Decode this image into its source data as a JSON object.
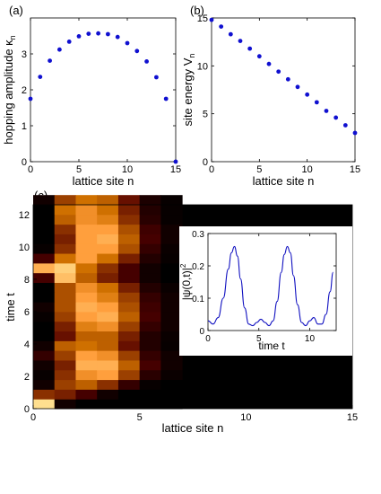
{
  "chart_data": [
    {
      "type": "scatter",
      "panel_label": "(a)",
      "xlabel": "lattice site n",
      "ylabel": "hopping amplitude κ",
      "ylabel_sub": "n",
      "xlim": [
        0,
        15
      ],
      "ylim": [
        0,
        4
      ],
      "xticks": [
        0,
        5,
        10,
        15
      ],
      "yticks": [
        0,
        1,
        2,
        3
      ],
      "grid": false,
      "color": "#1010d0",
      "x": [
        0,
        1,
        2,
        3,
        4,
        5,
        6,
        7,
        8,
        9,
        10,
        11,
        12,
        13,
        14,
        15
      ],
      "y": [
        1.75,
        2.36,
        2.81,
        3.12,
        3.34,
        3.49,
        3.56,
        3.57,
        3.55,
        3.47,
        3.3,
        3.08,
        2.79,
        2.35,
        1.75,
        0.0
      ]
    },
    {
      "type": "scatter",
      "panel_label": "(b)",
      "xlabel": "lattice site n",
      "ylabel": "site energy  V",
      "ylabel_sub": "n",
      "xlim": [
        0,
        15
      ],
      "ylim": [
        0,
        15
      ],
      "xticks": [
        0,
        5,
        10,
        15
      ],
      "yticks": [
        0,
        5,
        10,
        15
      ],
      "grid": false,
      "color": "#1010d0",
      "x": [
        0,
        1,
        2,
        3,
        4,
        5,
        6,
        7,
        8,
        9,
        10,
        11,
        12,
        13,
        14,
        15
      ],
      "y": [
        14.8,
        14.1,
        13.3,
        12.6,
        11.8,
        11.0,
        10.2,
        9.4,
        8.6,
        7.8,
        7.0,
        6.2,
        5.3,
        4.6,
        3.8,
        3.0
      ]
    },
    {
      "type": "heatmap",
      "panel_label": "(c)",
      "xlabel": "lattice site n",
      "ylabel": "time  t",
      "xlim": [
        0,
        15
      ],
      "ylim": [
        0,
        12.6
      ],
      "xticks": [
        0,
        5,
        10,
        15
      ],
      "yticks": [
        0,
        2,
        4,
        6,
        8,
        10,
        12
      ],
      "colormap": "copper",
      "grid": false,
      "times": [
        0.0,
        0.6,
        1.2,
        1.8,
        2.4,
        3.0,
        3.6,
        4.2,
        4.8,
        5.4,
        6.0,
        6.6,
        7.2,
        7.8,
        8.4,
        9.0,
        9.6,
        10.2,
        10.8,
        11.4,
        12.0,
        12.6
      ],
      "sites": [
        0,
        1,
        2,
        3,
        4,
        5,
        6
      ],
      "values": [
        [
          0.95,
          0.05,
          0.0,
          0.0,
          0.0,
          0.0,
          0.0
        ],
        [
          0.4,
          0.35,
          0.2,
          0.05,
          0.0,
          0.0,
          0.0
        ],
        [
          0.05,
          0.45,
          0.55,
          0.4,
          0.15,
          0.02,
          0.0
        ],
        [
          0.02,
          0.4,
          0.7,
          0.75,
          0.45,
          0.12,
          0.03
        ],
        [
          0.05,
          0.35,
          0.8,
          0.8,
          0.55,
          0.2,
          0.05
        ],
        [
          0.15,
          0.45,
          0.75,
          0.7,
          0.45,
          0.15,
          0.05
        ],
        [
          0.05,
          0.55,
          0.6,
          0.55,
          0.3,
          0.1,
          0.02
        ],
        [
          0.0,
          0.3,
          0.55,
          0.55,
          0.35,
          0.1,
          0.03
        ],
        [
          0.0,
          0.35,
          0.65,
          0.7,
          0.45,
          0.15,
          0.05
        ],
        [
          0.02,
          0.45,
          0.75,
          0.8,
          0.55,
          0.2,
          0.05
        ],
        [
          0.05,
          0.5,
          0.8,
          0.75,
          0.5,
          0.18,
          0.05
        ],
        [
          0.0,
          0.5,
          0.75,
          0.65,
          0.45,
          0.15,
          0.05
        ],
        [
          0.0,
          0.5,
          0.7,
          0.6,
          0.35,
          0.1,
          0.03
        ],
        [
          0.2,
          0.85,
          0.55,
          0.35,
          0.2,
          0.05,
          0.0
        ],
        [
          0.8,
          0.9,
          0.6,
          0.4,
          0.2,
          0.05,
          0.0
        ],
        [
          0.2,
          0.6,
          0.75,
          0.6,
          0.35,
          0.1,
          0.02
        ],
        [
          0.02,
          0.4,
          0.75,
          0.75,
          0.5,
          0.15,
          0.03
        ],
        [
          0.0,
          0.35,
          0.75,
          0.8,
          0.55,
          0.2,
          0.05
        ],
        [
          0.0,
          0.4,
          0.75,
          0.75,
          0.5,
          0.18,
          0.05
        ],
        [
          0.0,
          0.55,
          0.7,
          0.65,
          0.4,
          0.12,
          0.02
        ],
        [
          0.0,
          0.6,
          0.7,
          0.6,
          0.35,
          0.1,
          0.02
        ],
        [
          0.05,
          0.45,
          0.6,
          0.55,
          0.3,
          0.08,
          0.02
        ]
      ]
    },
    {
      "type": "line",
      "panel_label": "",
      "xlabel": "time t",
      "ylabel": "|ψ(0,t)|",
      "ylabel_sup": "2",
      "xlim": [
        0,
        12.6
      ],
      "ylim": [
        0,
        0.3
      ],
      "xticks": [
        0,
        5,
        10
      ],
      "yticks": [
        0,
        0.1,
        0.2,
        0.3
      ],
      "grid": false,
      "color": "#1010c0",
      "x": [
        0,
        0.5,
        1.0,
        1.5,
        2.0,
        2.3,
        2.6,
        2.9,
        3.2,
        3.6,
        4.0,
        4.4,
        4.8,
        5.2,
        5.6,
        6.0,
        6.4,
        6.8,
        7.2,
        7.5,
        7.8,
        8.1,
        8.4,
        8.8,
        9.2,
        9.6,
        10.0,
        10.4,
        10.8,
        11.2,
        11.6,
        12.0,
        12.3
      ],
      "y": [
        0.03,
        0.02,
        0.04,
        0.1,
        0.19,
        0.24,
        0.26,
        0.23,
        0.16,
        0.07,
        0.02,
        0.015,
        0.025,
        0.035,
        0.025,
        0.015,
        0.03,
        0.09,
        0.18,
        0.235,
        0.26,
        0.24,
        0.17,
        0.08,
        0.025,
        0.015,
        0.03,
        0.04,
        0.02,
        0.02,
        0.05,
        0.12,
        0.18
      ]
    }
  ]
}
